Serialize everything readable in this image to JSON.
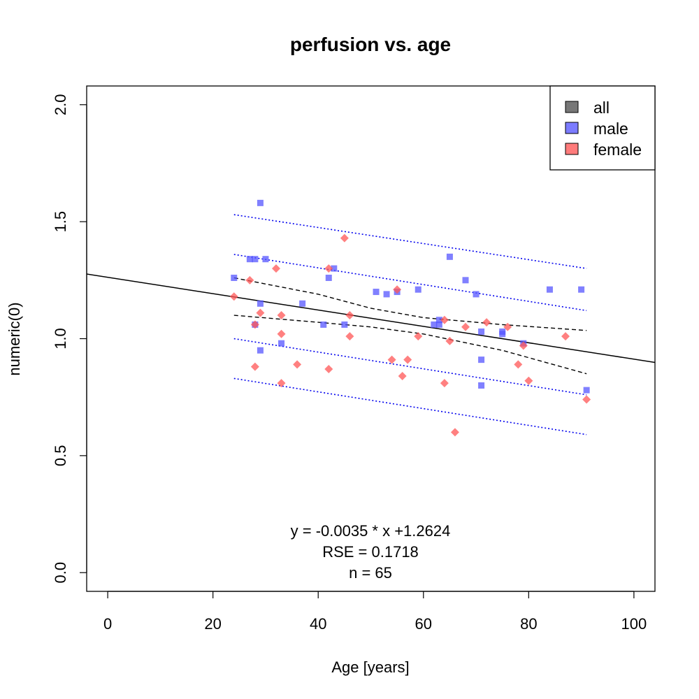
{
  "chart_data": {
    "type": "scatter",
    "title": "perfusion vs. age",
    "xlabel": "Age [years]",
    "ylabel": "numeric(0)",
    "xlim": [
      -4,
      104
    ],
    "ylim": [
      -0.08,
      2.08
    ],
    "xticks": [
      "0",
      "20",
      "40",
      "60",
      "80",
      "100"
    ],
    "yticks": [
      "0.0",
      "0.5",
      "1.0",
      "1.5",
      "2.0"
    ],
    "grid": false,
    "legend": {
      "position": "top-right",
      "entries": [
        {
          "label": "all",
          "color": "#777777"
        },
        {
          "label": "male",
          "color": "#7b7bff"
        },
        {
          "label": "female",
          "color": "#ff7b7b"
        }
      ]
    },
    "series": [
      {
        "name": "male",
        "marker": "square",
        "color": "#5555ff",
        "points": [
          [
            24,
            1.26
          ],
          [
            27,
            1.34
          ],
          [
            28,
            1.34
          ],
          [
            28,
            1.06
          ],
          [
            29,
            1.58
          ],
          [
            29,
            1.15
          ],
          [
            29,
            0.95
          ],
          [
            30,
            1.34
          ],
          [
            33,
            0.98
          ],
          [
            37,
            1.15
          ],
          [
            41,
            1.06
          ],
          [
            42,
            1.26
          ],
          [
            43,
            1.3
          ],
          [
            45,
            1.06
          ],
          [
            51,
            1.2
          ],
          [
            53,
            1.19
          ],
          [
            55,
            1.2
          ],
          [
            59,
            1.21
          ],
          [
            62,
            1.06
          ],
          [
            63,
            1.06
          ],
          [
            63,
            1.08
          ],
          [
            65,
            1.35
          ],
          [
            68,
            1.25
          ],
          [
            70,
            1.19
          ],
          [
            71,
            1.03
          ],
          [
            71,
            0.91
          ],
          [
            71,
            0.8
          ],
          [
            75,
            1.02
          ],
          [
            75,
            1.03
          ],
          [
            79,
            0.98
          ],
          [
            84,
            1.21
          ],
          [
            90,
            1.21
          ],
          [
            91,
            0.78
          ]
        ]
      },
      {
        "name": "female",
        "marker": "diamond",
        "color": "#ff5555",
        "points": [
          [
            24,
            1.18
          ],
          [
            27,
            1.25
          ],
          [
            28,
            1.06
          ],
          [
            28,
            0.88
          ],
          [
            29,
            1.11
          ],
          [
            32,
            1.3
          ],
          [
            33,
            1.1
          ],
          [
            33,
            1.02
          ],
          [
            33,
            0.81
          ],
          [
            36,
            0.89
          ],
          [
            42,
            1.3
          ],
          [
            42,
            0.87
          ],
          [
            45,
            1.43
          ],
          [
            46,
            1.1
          ],
          [
            46,
            1.01
          ],
          [
            54,
            0.91
          ],
          [
            55,
            1.21
          ],
          [
            56,
            0.84
          ],
          [
            57,
            0.91
          ],
          [
            59,
            1.01
          ],
          [
            64,
            1.08
          ],
          [
            64,
            0.81
          ],
          [
            65,
            0.99
          ],
          [
            66,
            0.6
          ],
          [
            68,
            1.05
          ],
          [
            72,
            1.07
          ],
          [
            76,
            1.05
          ],
          [
            78,
            0.89
          ],
          [
            79,
            0.97
          ],
          [
            80,
            0.82
          ],
          [
            87,
            1.01
          ],
          [
            91,
            0.74
          ]
        ]
      }
    ],
    "regression_line": {
      "slope": -0.0035,
      "intercept": 1.2624
    },
    "confidence_band": {
      "upper": [
        [
          24,
          1.26
        ],
        [
          40,
          1.19
        ],
        [
          50,
          1.13
        ],
        [
          60,
          1.09
        ],
        [
          75,
          1.06
        ],
        [
          91,
          1.035
        ]
      ],
      "lower": [
        [
          24,
          1.1
        ],
        [
          40,
          1.07
        ],
        [
          50,
          1.05
        ],
        [
          60,
          1.02
        ],
        [
          75,
          0.95
        ],
        [
          91,
          0.85
        ]
      ]
    },
    "prediction_bands": [
      {
        "from": [
          24,
          1.53
        ],
        "to": [
          91,
          1.3
        ]
      },
      {
        "from": [
          24,
          1.36
        ],
        "to": [
          91,
          1.12
        ]
      },
      {
        "from": [
          24,
          1.0
        ],
        "to": [
          91,
          0.76
        ]
      },
      {
        "from": [
          24,
          0.83
        ],
        "to": [
          91,
          0.59
        ]
      }
    ],
    "annotations": [
      "y = -0.0035 * x +1.2624",
      "RSE = 0.1718",
      "n = 65"
    ]
  }
}
